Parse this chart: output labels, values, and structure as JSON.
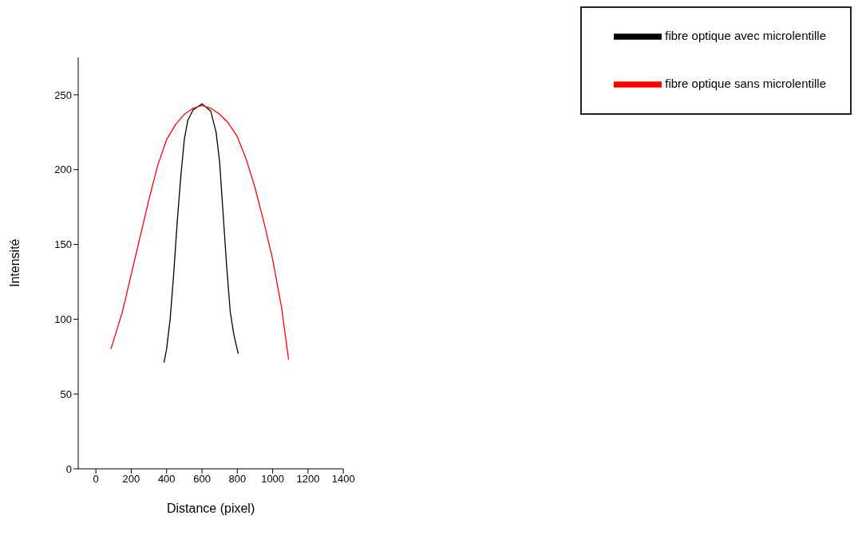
{
  "chart_data": {
    "type": "line",
    "xlabel": "Distance (pixel)",
    "ylabel": "Intensité",
    "xlim": [
      -100,
      1400
    ],
    "xticks": [
      0,
      200,
      400,
      600,
      800,
      1000,
      1200,
      1400
    ],
    "ylim": [
      0,
      275
    ],
    "yticks": [
      0,
      50,
      100,
      150,
      200,
      250
    ],
    "grid": false,
    "legend": "top right",
    "marker": "none",
    "line_style": "solid",
    "series": [
      {
        "name": "fibre optique avec microlentille",
        "color": "#000000",
        "x": [
          385,
          400,
          420,
          440,
          460,
          480,
          500,
          520,
          550,
          600,
          650,
          680,
          700,
          720,
          740,
          760,
          780,
          805
        ],
        "values": [
          71,
          80,
          100,
          130,
          165,
          195,
          220,
          233,
          240,
          244,
          239,
          225,
          205,
          170,
          135,
          105,
          90,
          77
        ]
      },
      {
        "name": "fibre optique sans microlentille",
        "color": "#ff0000",
        "x": [
          85,
          150,
          200,
          250,
          300,
          350,
          400,
          450,
          500,
          550,
          600,
          650,
          700,
          750,
          800,
          850,
          900,
          950,
          1000,
          1050,
          1090
        ],
        "values": [
          80,
          105,
          130,
          155,
          180,
          203,
          220,
          230,
          237,
          241,
          243,
          241,
          237,
          231,
          222,
          207,
          188,
          165,
          140,
          108,
          73
        ]
      }
    ]
  }
}
